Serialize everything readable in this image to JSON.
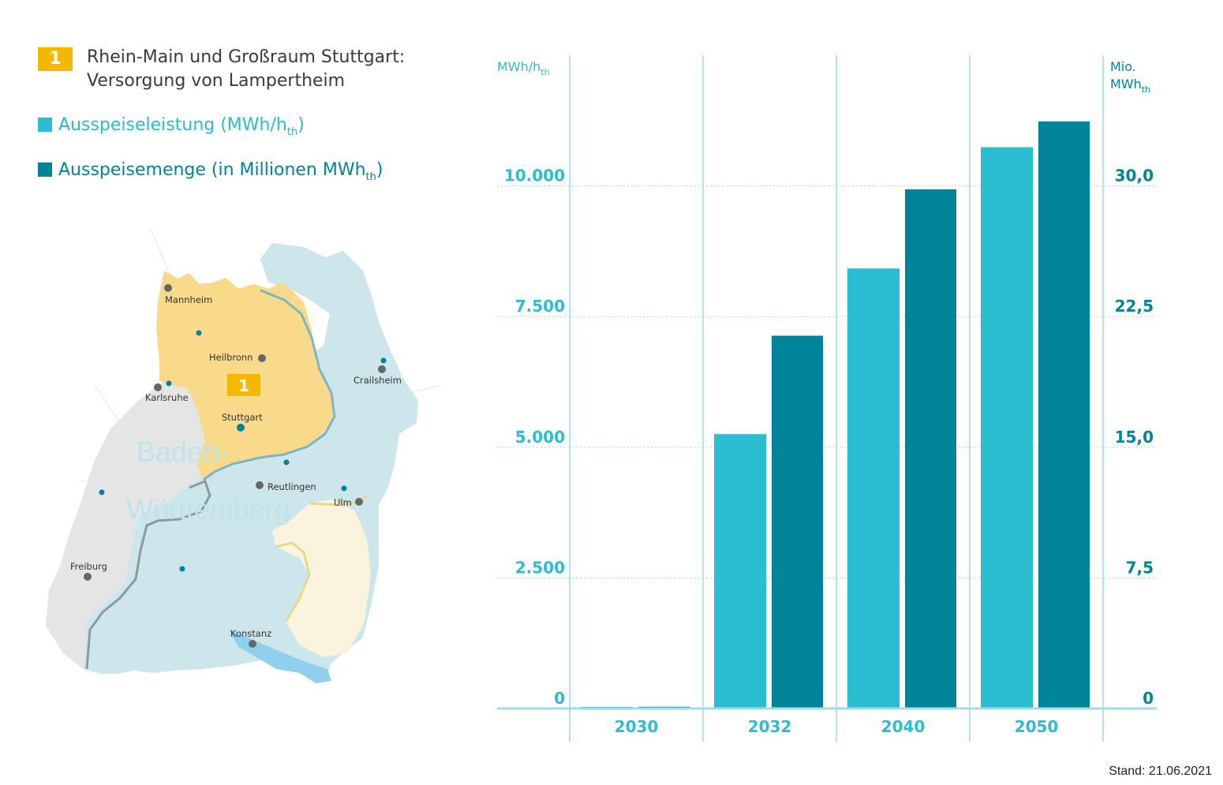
{
  "legend": {
    "badge": "1",
    "title_line1": "Rhein-Main und Großraum Stuttgart:",
    "title_line2": "Versorgung von Lampertheim",
    "item1_text": "Ausspeiseleistung (MWh/h",
    "item1_sub": "th",
    "item1_close": ")",
    "item2_text": "Ausspeisemenge (in Millionen MWh",
    "item2_sub": "th",
    "item2_close": ")"
  },
  "map": {
    "region_badge": "1",
    "state_label_1": "Baden-",
    "state_label_2": "Württemberg",
    "cities": [
      {
        "name": "Mannheim"
      },
      {
        "name": "Heilbronn"
      },
      {
        "name": "Crailsheim"
      },
      {
        "name": "Karlsruhe"
      },
      {
        "name": "Stuttgart"
      },
      {
        "name": "Reutlingen"
      },
      {
        "name": "Ulm"
      },
      {
        "name": "Freiburg"
      },
      {
        "name": "Konstanz"
      }
    ]
  },
  "chart_data": {
    "type": "bar",
    "categories": [
      "2030",
      "2032",
      "2040",
      "2050"
    ],
    "series": [
      {
        "name": "Ausspeiseleistung (MWh/hth)",
        "axis": "left",
        "color": "#2bbdd1",
        "values": [
          30,
          5250,
          8420,
          10740
        ]
      },
      {
        "name": "Ausspeisemenge (in Millionen MWhth)",
        "axis": "right",
        "color": "#00849a",
        "values": [
          0.1,
          21.4,
          29.8,
          33.7
        ]
      }
    ],
    "left_axis": {
      "label": "MWh/h",
      "label_sub": "th",
      "ticks": [
        "0",
        "2.500",
        "5.000",
        "7.500",
        "10.000"
      ],
      "tick_values": [
        0,
        2500,
        5000,
        7500,
        10000
      ],
      "range": [
        0,
        12500
      ]
    },
    "right_axis": {
      "label_line1": "Mio.",
      "label_line2": "MWh",
      "label_sub": "th",
      "ticks": [
        "0",
        "7,5",
        "15,0",
        "22,5",
        "30,0"
      ],
      "tick_values": [
        0,
        7.5,
        15,
        22.5,
        30
      ],
      "range": [
        0,
        37.5
      ]
    },
    "grid": true
  },
  "footer": {
    "stand": "Stand: 21.06.2021"
  },
  "colors": {
    "light": "#2bbdd1",
    "dark": "#00849a",
    "grid": "#9fdce5",
    "orange": "#f5b800"
  }
}
